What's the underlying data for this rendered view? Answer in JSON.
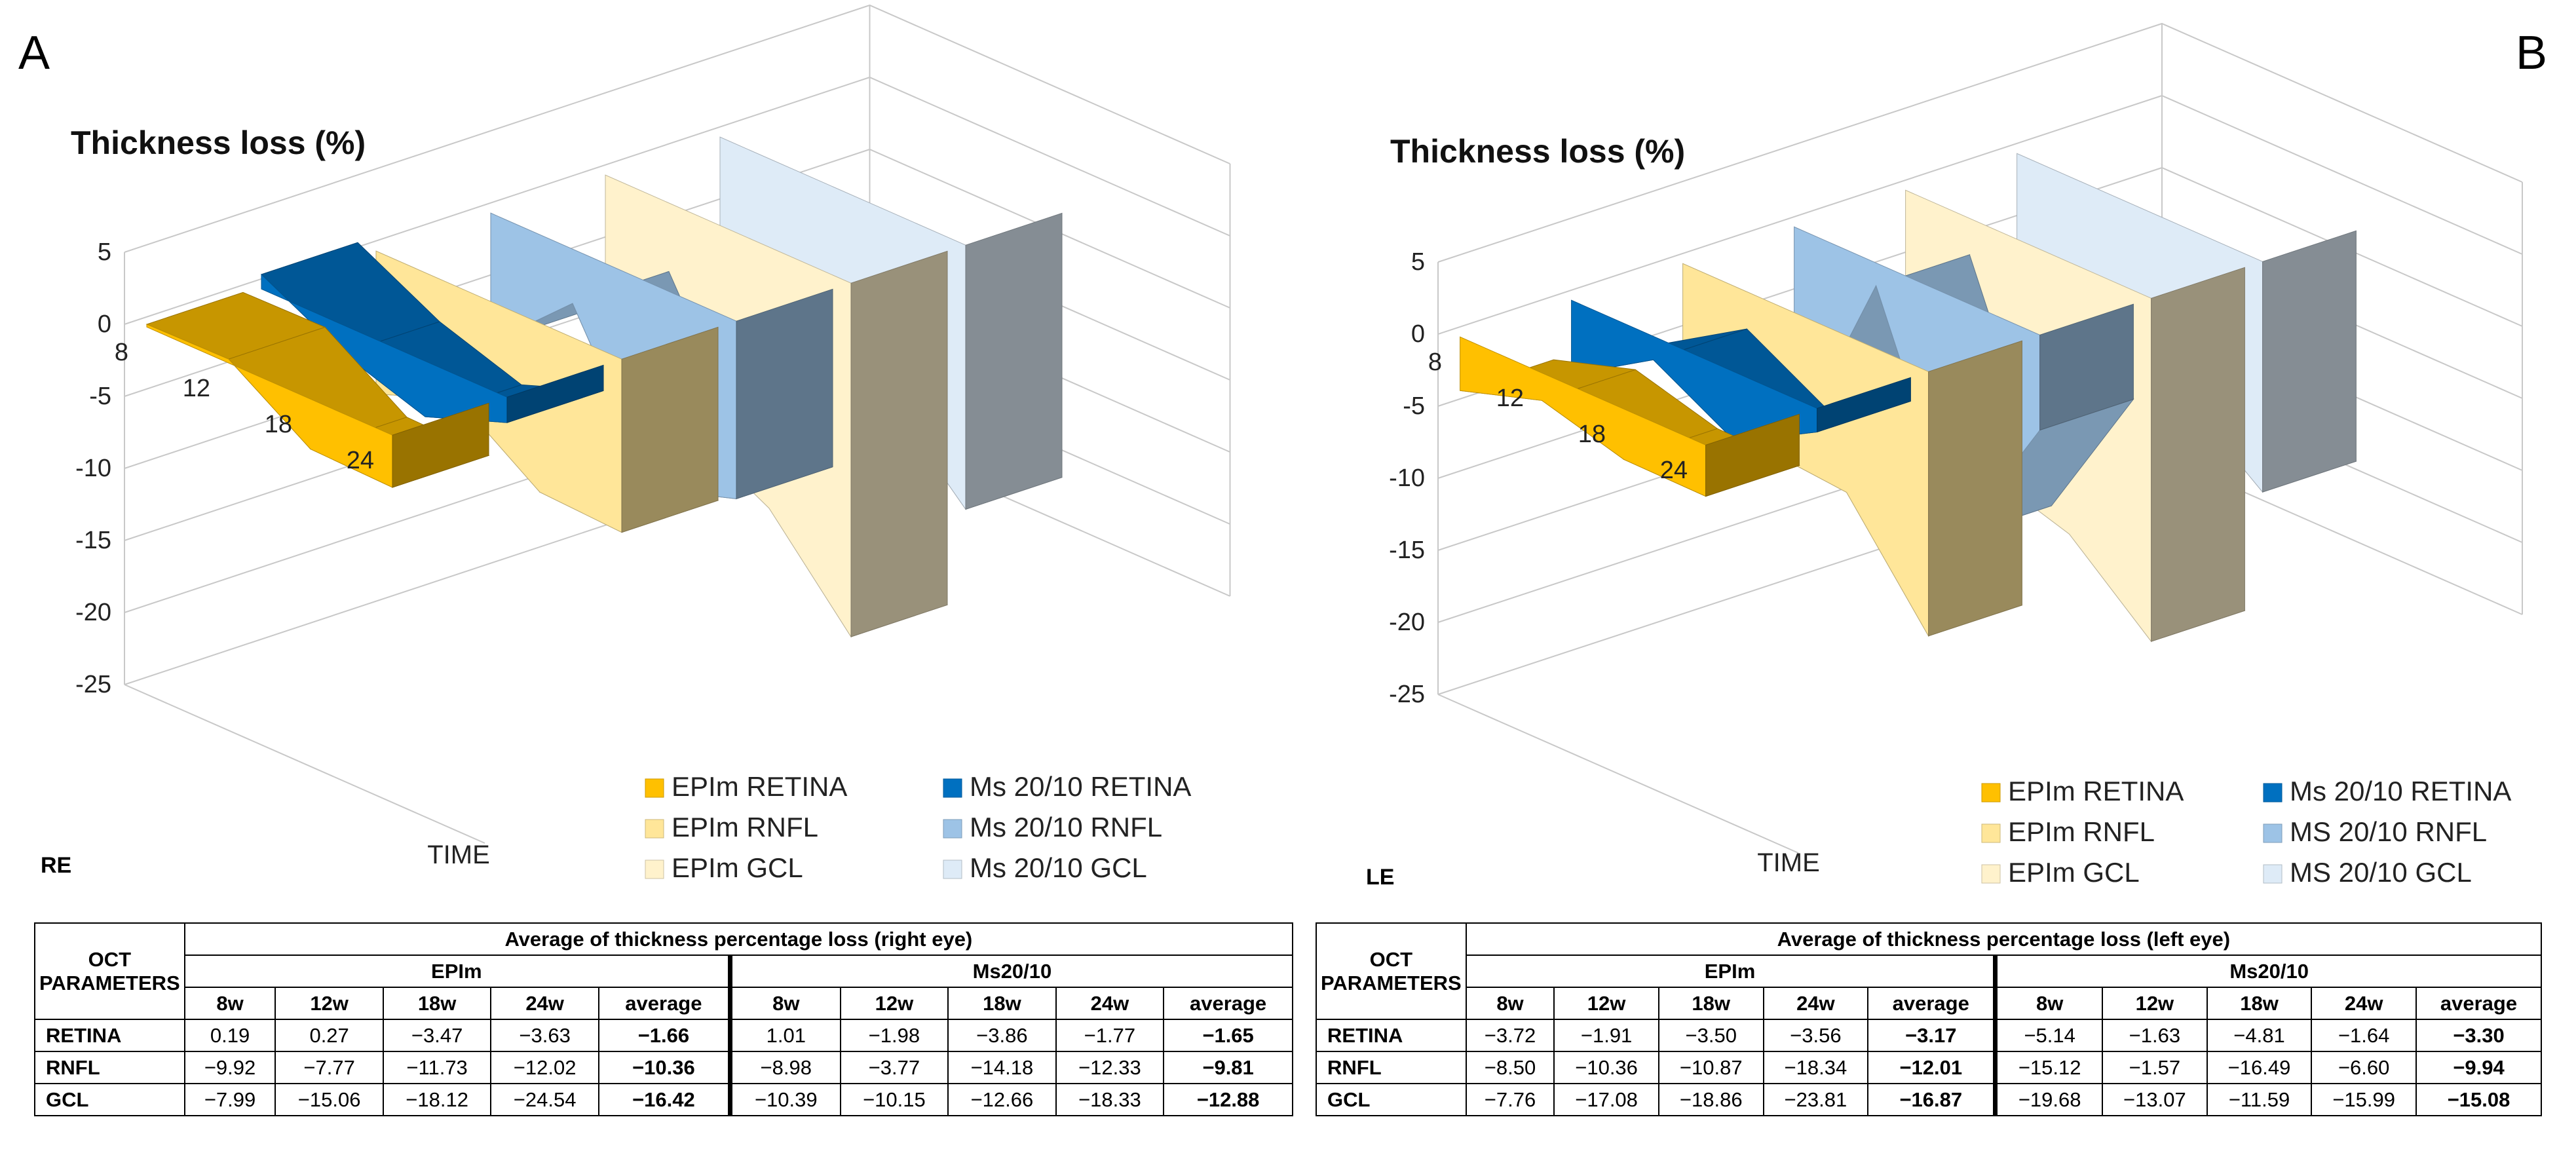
{
  "panels": {
    "a": {
      "letter": "A",
      "eye": "RE"
    },
    "b": {
      "letter": "B",
      "eye": "LE"
    }
  },
  "chart_data": [
    {
      "type": "3d-bar",
      "panel": "A",
      "title": "Thickness loss (%)",
      "xlabel": "TIME",
      "categories": [
        "8",
        "12",
        "18",
        "24"
      ],
      "ylim": [
        -25,
        5
      ],
      "yticks": [
        "5",
        "0",
        "-5",
        "-10",
        "-15",
        "-20",
        "-25"
      ],
      "series": [
        {
          "name": "EPIm RETINA",
          "values": [
            0.19,
            0.27,
            -3.47,
            -3.63
          ],
          "color": "#FFC000"
        },
        {
          "name": "Ms 20/10 RETINA",
          "values": [
            1.01,
            -1.98,
            -3.86,
            -1.77
          ],
          "color": "#0070C0"
        },
        {
          "name": "EPIm RNFL",
          "values": [
            -9.92,
            -7.77,
            -11.73,
            -12.02
          ],
          "color": "#FFE699"
        },
        {
          "name": "Ms 20/10 RNFL",
          "values": [
            -8.98,
            -3.77,
            -14.18,
            -12.33
          ],
          "color": "#9DC3E6"
        },
        {
          "name": "EPIm GCL",
          "values": [
            -7.99,
            -15.06,
            -18.12,
            -24.54
          ],
          "color": "#FFF2CC"
        },
        {
          "name": "Ms 20/10 GCL",
          "values": [
            -10.39,
            -10.15,
            -12.66,
            -18.33
          ],
          "color": "#DEEBF7"
        }
      ]
    },
    {
      "type": "3d-bar",
      "panel": "B",
      "title": "Thickness loss (%)",
      "xlabel": "TIME",
      "categories": [
        "8",
        "12",
        "18",
        "24"
      ],
      "ylim": [
        -25,
        5
      ],
      "yticks": [
        "5",
        "0",
        "-5",
        "-10",
        "-15",
        "-20",
        "-25"
      ],
      "series": [
        {
          "name": "EPIm RETINA",
          "values": [
            -3.72,
            -1.91,
            -3.5,
            -3.56
          ],
          "color": "#FFC000"
        },
        {
          "name": "Ms 20/10 RETINA",
          "values": [
            -5.14,
            -1.63,
            -4.81,
            -1.64
          ],
          "color": "#0070C0"
        },
        {
          "name": "EPIm RNFL",
          "values": [
            -8.5,
            -10.36,
            -10.87,
            -18.34
          ],
          "color": "#FFE699"
        },
        {
          "name": "MS 20/10 RNFL",
          "values": [
            -15.12,
            -1.57,
            -16.49,
            -6.6
          ],
          "color": "#9DC3E6"
        },
        {
          "name": "EPIm GCL",
          "values": [
            -7.76,
            -17.08,
            -18.86,
            -23.81
          ],
          "color": "#FFF2CC"
        },
        {
          "name": "MS 20/10 GCL",
          "values": [
            -19.68,
            -13.07,
            -11.59,
            -15.99
          ],
          "color": "#DEEBF7"
        }
      ]
    },
    {
      "type": "table",
      "panel": "A",
      "corner": [
        "OCT",
        "PARAMETERS"
      ],
      "title": "Average of thickness percentage loss (right eye)",
      "groups": [
        "EPIm",
        "Ms20/10"
      ],
      "columns": [
        "8w",
        "12w",
        "18w",
        "24w",
        "average"
      ],
      "rows": [
        {
          "label": "RETINA",
          "epim": [
            "0.19",
            "0.27",
            "−3.47",
            "−3.63",
            "−1.66"
          ],
          "ms": [
            "1.01",
            "−1.98",
            "−3.86",
            "−1.77",
            "−1.65"
          ]
        },
        {
          "label": "RNFL",
          "epim": [
            "−9.92",
            "−7.77",
            "−11.73",
            "−12.02",
            "−10.36"
          ],
          "ms": [
            "−8.98",
            "−3.77",
            "−14.18",
            "−12.33",
            "−9.81"
          ]
        },
        {
          "label": "GCL",
          "epim": [
            "−7.99",
            "−15.06",
            "−18.12",
            "−24.54",
            "−16.42"
          ],
          "ms": [
            "−10.39",
            "−10.15",
            "−12.66",
            "−18.33",
            "−12.88"
          ]
        }
      ]
    },
    {
      "type": "table",
      "panel": "B",
      "corner": [
        "OCT",
        "PARAMETERS"
      ],
      "title": "Average of thickness percentage loss (left eye)",
      "groups": [
        "EPIm",
        "Ms20/10"
      ],
      "columns": [
        "8w",
        "12w",
        "18w",
        "24w",
        "average"
      ],
      "rows": [
        {
          "label": "RETINA",
          "epim": [
            "−3.72",
            "−1.91",
            "−3.50",
            "−3.56",
            "−3.17"
          ],
          "ms": [
            "−5.14",
            "−1.63",
            "−4.81",
            "−1.64",
            "−3.30"
          ]
        },
        {
          "label": "RNFL",
          "epim": [
            "−8.50",
            "−10.36",
            "−10.87",
            "−18.34",
            "−12.01"
          ],
          "ms": [
            "−15.12",
            "−1.57",
            "−16.49",
            "−6.60",
            "−9.94"
          ]
        },
        {
          "label": "GCL",
          "epim": [
            "−7.76",
            "−17.08",
            "−18.86",
            "−23.81",
            "−16.87"
          ],
          "ms": [
            "−19.68",
            "−13.07",
            "−11.59",
            "−15.99",
            "−15.08"
          ]
        }
      ]
    }
  ]
}
